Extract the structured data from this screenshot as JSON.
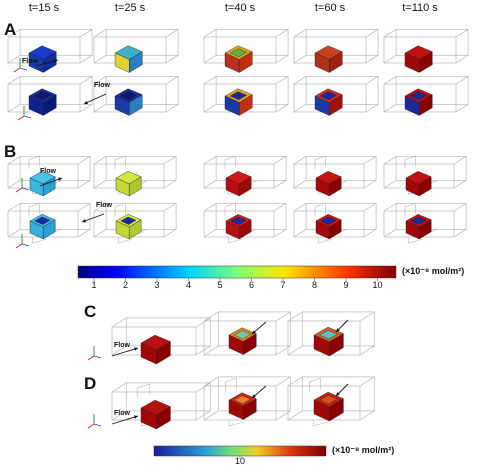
{
  "time_labels": [
    "t=15 s",
    "t=25 s",
    "t=40 s",
    "t=60 s",
    "t=110 s"
  ],
  "panels": [
    "A",
    "B",
    "C",
    "D"
  ],
  "flow_label": "Flow",
  "colorbar_top": {
    "ticks": [
      "1",
      "2",
      "3",
      "4",
      "5",
      "6",
      "7",
      "8",
      "9",
      "10"
    ],
    "unit": "(×10⁻⁸ mol/m²)"
  },
  "colorbar_bottom": {
    "ticks": [
      "10"
    ],
    "unit": "(×10⁻⁸ mol/m²)"
  },
  "colors": {
    "low": "#1a1a8c",
    "mid": "#36c9c9",
    "high": "#8b0000"
  }
}
